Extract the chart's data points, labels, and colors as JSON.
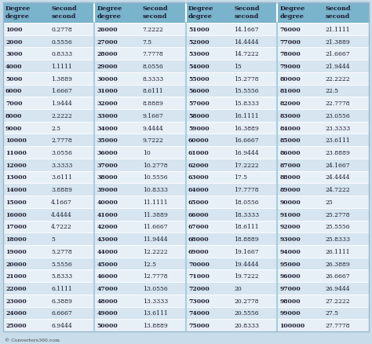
{
  "header_bg": "#7ab3cc",
  "row_bg_odd": "#e8f0f7",
  "row_bg_even": "#d6e5f0",
  "outer_bg": "#c8dcea",
  "header_text_color": "#1a1a2e",
  "data_text_color": "#1a1a2e",
  "footer_text": "© Converters360.com",
  "separator_color": "#ffffff",
  "col_separator_color": "#aaccdd",
  "col1_data": [
    [
      "1000",
      "0.2778"
    ],
    [
      "2000",
      "0.5556"
    ],
    [
      "3000",
      "0.8333"
    ],
    [
      "4000",
      "1.1111"
    ],
    [
      "5000",
      "1.3889"
    ],
    [
      "6000",
      "1.6667"
    ],
    [
      "7000",
      "1.9444"
    ],
    [
      "8000",
      "2.2222"
    ],
    [
      "9000",
      "2.5"
    ],
    [
      "10000",
      "2.7778"
    ],
    [
      "11000",
      "3.0556"
    ],
    [
      "12000",
      "3.3333"
    ],
    [
      "13000",
      "3.6111"
    ],
    [
      "14000",
      "3.8889"
    ],
    [
      "15000",
      "4.1667"
    ],
    [
      "16000",
      "4.4444"
    ],
    [
      "17000",
      "4.7222"
    ],
    [
      "18000",
      "5"
    ],
    [
      "19000",
      "5.2778"
    ],
    [
      "20000",
      "5.5556"
    ],
    [
      "21000",
      "5.8333"
    ],
    [
      "22000",
      "6.1111"
    ],
    [
      "23000",
      "6.3889"
    ],
    [
      "24000",
      "6.6667"
    ],
    [
      "25000",
      "6.9444"
    ]
  ],
  "col2_data": [
    [
      "26000",
      "7.2222"
    ],
    [
      "27000",
      "7.5"
    ],
    [
      "28000",
      "7.7778"
    ],
    [
      "29000",
      "8.0556"
    ],
    [
      "30000",
      "8.3333"
    ],
    [
      "31000",
      "8.6111"
    ],
    [
      "32000",
      "8.8889"
    ],
    [
      "33000",
      "9.1667"
    ],
    [
      "34000",
      "9.4444"
    ],
    [
      "35000",
      "9.7222"
    ],
    [
      "36000",
      "10"
    ],
    [
      "37000",
      "10.2778"
    ],
    [
      "38000",
      "10.5556"
    ],
    [
      "39000",
      "10.8333"
    ],
    [
      "40000",
      "11.1111"
    ],
    [
      "41000",
      "11.3889"
    ],
    [
      "42000",
      "11.6667"
    ],
    [
      "43000",
      "11.9444"
    ],
    [
      "44000",
      "12.2222"
    ],
    [
      "45000",
      "12.5"
    ],
    [
      "46000",
      "12.7778"
    ],
    [
      "47000",
      "13.0556"
    ],
    [
      "48000",
      "13.3333"
    ],
    [
      "49000",
      "13.6111"
    ],
    [
      "50000",
      "13.8889"
    ]
  ],
  "col3_data": [
    [
      "51000",
      "14.1667"
    ],
    [
      "52000",
      "14.4444"
    ],
    [
      "53000",
      "14.7222"
    ],
    [
      "54000",
      "15"
    ],
    [
      "55000",
      "15.2778"
    ],
    [
      "56000",
      "15.5556"
    ],
    [
      "57000",
      "15.8333"
    ],
    [
      "58000",
      "16.1111"
    ],
    [
      "59000",
      "16.3889"
    ],
    [
      "60000",
      "16.6667"
    ],
    [
      "61000",
      "16.9444"
    ],
    [
      "62000",
      "17.2222"
    ],
    [
      "63000",
      "17.5"
    ],
    [
      "64000",
      "17.7778"
    ],
    [
      "65000",
      "18.0556"
    ],
    [
      "66000",
      "18.3333"
    ],
    [
      "67000",
      "18.6111"
    ],
    [
      "68000",
      "18.8889"
    ],
    [
      "69000",
      "19.1667"
    ],
    [
      "70000",
      "19.4444"
    ],
    [
      "71000",
      "19.7222"
    ],
    [
      "72000",
      "20"
    ],
    [
      "73000",
      "20.2778"
    ],
    [
      "74000",
      "20.5556"
    ],
    [
      "75000",
      "20.8333"
    ]
  ],
  "col4_data": [
    [
      "76000",
      "21.1111"
    ],
    [
      "77000",
      "21.3889"
    ],
    [
      "78000",
      "21.6667"
    ],
    [
      "79000",
      "21.9444"
    ],
    [
      "80000",
      "22.2222"
    ],
    [
      "81000",
      "22.5"
    ],
    [
      "82000",
      "22.7778"
    ],
    [
      "83000",
      "23.0556"
    ],
    [
      "84000",
      "23.3333"
    ],
    [
      "85000",
      "23.6111"
    ],
    [
      "86000",
      "23.8889"
    ],
    [
      "87000",
      "24.1667"
    ],
    [
      "88000",
      "24.4444"
    ],
    [
      "89000",
      "24.7222"
    ],
    [
      "90000",
      "25"
    ],
    [
      "91000",
      "25.2778"
    ],
    [
      "92000",
      "25.5556"
    ],
    [
      "93000",
      "25.8333"
    ],
    [
      "94000",
      "26.1111"
    ],
    [
      "95000",
      "26.3889"
    ],
    [
      "96000",
      "26.6667"
    ],
    [
      "97000",
      "26.9444"
    ],
    [
      "98000",
      "27.2222"
    ],
    [
      "99000",
      "27.5"
    ],
    [
      "100000",
      "27.7778"
    ]
  ]
}
